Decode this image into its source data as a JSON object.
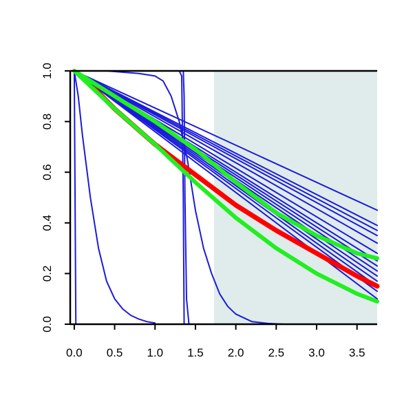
{
  "chart_data": {
    "type": "line",
    "title": "",
    "xlabel": "",
    "ylabel": "",
    "xlim": [
      -0.05,
      3.75
    ],
    "ylim": [
      0,
      1
    ],
    "x_ticks": [
      "0.0",
      "0.5",
      "1.0",
      "1.5",
      "2.0",
      "2.5",
      "3.0",
      "3.5"
    ],
    "y_ticks": [
      "0.0",
      "0.2",
      "0.4",
      "0.6",
      "0.8",
      "1.0"
    ],
    "grid": false,
    "shaded_region": {
      "x_start": 1.73,
      "x_end": 3.75,
      "color": "#e0ecec"
    },
    "colors": {
      "blue": "#1a1adc",
      "red": "#ff0000",
      "green": "#22ee22"
    },
    "series": [
      {
        "color": "blue",
        "points": [
          [
            0.0,
            1.0
          ],
          [
            3.75,
            0.45
          ]
        ]
      },
      {
        "color": "blue",
        "points": [
          [
            0.0,
            1.0
          ],
          [
            3.75,
            0.39
          ]
        ]
      },
      {
        "color": "blue",
        "points": [
          [
            0.0,
            1.0
          ],
          [
            3.75,
            0.37
          ]
        ]
      },
      {
        "color": "blue",
        "points": [
          [
            0.0,
            1.0
          ],
          [
            3.75,
            0.35
          ]
        ]
      },
      {
        "color": "blue",
        "points": [
          [
            0.0,
            1.0
          ],
          [
            3.75,
            0.32
          ]
        ]
      },
      {
        "color": "blue",
        "points": [
          [
            0.0,
            1.0
          ],
          [
            3.75,
            0.28
          ]
        ]
      },
      {
        "color": "blue",
        "points": [
          [
            0.0,
            1.0
          ],
          [
            3.75,
            0.25
          ]
        ]
      },
      {
        "color": "blue",
        "points": [
          [
            0.0,
            1.0
          ],
          [
            3.75,
            0.23
          ]
        ]
      },
      {
        "color": "blue",
        "points": [
          [
            0.0,
            1.0
          ],
          [
            3.75,
            0.21
          ]
        ]
      },
      {
        "color": "blue",
        "points": [
          [
            0.0,
            1.0
          ],
          [
            3.75,
            0.19
          ]
        ]
      },
      {
        "color": "blue",
        "points": [
          [
            0.0,
            1.0
          ],
          [
            3.75,
            0.17
          ]
        ]
      },
      {
        "color": "blue",
        "points": [
          [
            0.0,
            1.0
          ],
          [
            3.75,
            0.15
          ]
        ]
      },
      {
        "color": "blue",
        "points": [
          [
            0.0,
            1.0
          ],
          [
            3.75,
            0.13
          ]
        ]
      },
      {
        "color": "blue",
        "points": [
          [
            0.0,
            1.0
          ],
          [
            3.75,
            0.1
          ]
        ]
      },
      {
        "color": "blue",
        "points": [
          [
            0.0,
            1.0
          ],
          [
            0.02,
            0.0
          ],
          [
            0.06,
            0.0
          ]
        ]
      },
      {
        "color": "blue",
        "points": [
          [
            0.0,
            1.0
          ],
          [
            0.05,
            0.9
          ],
          [
            0.1,
            0.75
          ],
          [
            0.2,
            0.5
          ],
          [
            0.3,
            0.3
          ],
          [
            0.4,
            0.17
          ],
          [
            0.5,
            0.1
          ],
          [
            0.6,
            0.06
          ],
          [
            0.7,
            0.035
          ],
          [
            0.8,
            0.02
          ],
          [
            0.9,
            0.01
          ],
          [
            1.0,
            0.005
          ]
        ]
      },
      {
        "color": "blue",
        "points": [
          [
            0.0,
            1.0
          ],
          [
            0.4,
            1.0
          ],
          [
            0.8,
            0.99
          ],
          [
            1.0,
            0.98
          ],
          [
            1.1,
            0.96
          ],
          [
            1.2,
            0.9
          ],
          [
            1.3,
            0.8
          ],
          [
            1.4,
            0.65
          ],
          [
            1.5,
            0.45
          ],
          [
            1.6,
            0.3
          ],
          [
            1.7,
            0.2
          ],
          [
            1.8,
            0.12
          ],
          [
            1.9,
            0.07
          ],
          [
            2.0,
            0.04
          ],
          [
            2.2,
            0.01
          ],
          [
            2.4,
            0.003
          ],
          [
            2.6,
            0.0
          ]
        ]
      },
      {
        "color": "blue",
        "points": [
          [
            0.0,
            1.0
          ],
          [
            1.3,
            1.0
          ],
          [
            1.33,
            0.98
          ],
          [
            1.35,
            0.5
          ],
          [
            1.36,
            0.0
          ]
        ]
      },
      {
        "color": "blue",
        "points": [
          [
            0.0,
            1.0
          ],
          [
            1.35,
            1.0
          ],
          [
            1.36,
            0.9
          ],
          [
            1.37,
            0.5
          ],
          [
            1.39,
            0.1
          ],
          [
            1.42,
            0.0
          ]
        ]
      },
      {
        "color": "red",
        "points": [
          [
            0.25,
            0.93
          ],
          [
            0.5,
            0.85
          ],
          [
            1.0,
            0.71
          ],
          [
            1.5,
            0.59
          ],
          [
            2.0,
            0.47
          ],
          [
            2.5,
            0.37
          ],
          [
            3.0,
            0.28
          ],
          [
            3.5,
            0.19
          ],
          [
            3.75,
            0.15
          ]
        ]
      },
      {
        "color": "green",
        "points": [
          [
            0.0,
            1.0
          ],
          [
            0.5,
            0.9
          ],
          [
            1.0,
            0.8
          ],
          [
            1.5,
            0.69
          ],
          [
            2.0,
            0.56
          ],
          [
            2.5,
            0.44
          ],
          [
            3.0,
            0.35
          ],
          [
            3.5,
            0.28
          ],
          [
            3.75,
            0.26
          ]
        ]
      },
      {
        "color": "green",
        "points": [
          [
            0.0,
            1.0
          ],
          [
            0.5,
            0.85
          ],
          [
            1.0,
            0.71
          ],
          [
            1.5,
            0.56
          ],
          [
            2.0,
            0.42
          ],
          [
            2.5,
            0.3
          ],
          [
            3.0,
            0.2
          ],
          [
            3.5,
            0.12
          ],
          [
            3.75,
            0.09
          ]
        ]
      }
    ]
  }
}
